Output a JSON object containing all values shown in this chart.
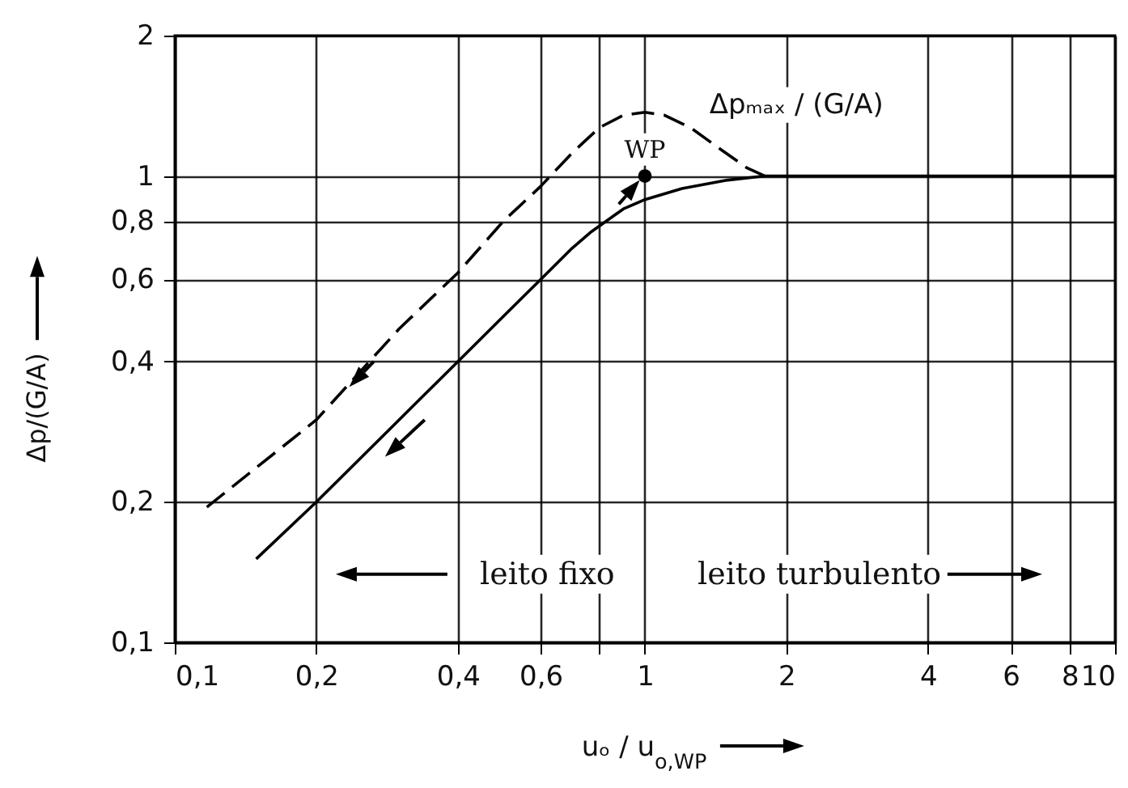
{
  "chart_data": {
    "type": "line",
    "xlabel": "uₒ / u$_{o,WP}$",
    "ylabel": "Δp/(G/A)",
    "log": "xy",
    "grid": true,
    "marker": "none",
    "xlim": [
      0.1,
      10
    ],
    "ylim": [
      0.1,
      2
    ],
    "xticks": [
      {
        "value": 0.1,
        "label": "0,1"
      },
      {
        "value": 0.2,
        "label": "0,2"
      },
      {
        "value": 0.4,
        "label": "0,4"
      },
      {
        "value": 0.6,
        "label": "0,6"
      },
      {
        "value": 0.8,
        "label": null
      },
      1,
      2,
      4,
      6,
      8,
      10
    ],
    "yticks": [
      {
        "value": 0.1,
        "label": "0,1"
      },
      {
        "value": 0.2,
        "label": "0,2"
      },
      {
        "value": 0.4,
        "label": "0,4"
      },
      {
        "value": 0.6,
        "label": "0,6"
      },
      {
        "value": 0.8,
        "label": "0,8"
      },
      1,
      2
    ],
    "series": [
      {
        "color": "#000000",
        "line_style": "dashed",
        "x": [
          0.117,
          0.2,
          0.3,
          0.4,
          0.5,
          0.6,
          0.7,
          0.8,
          0.9,
          1,
          1.1,
          1.25,
          1.45,
          1.65,
          1.8
        ],
        "values": [
          0.195,
          0.3,
          0.47,
          0.62,
          0.8,
          0.95,
          1.12,
          1.27,
          1.35,
          1.37,
          1.35,
          1.27,
          1.14,
          1.04,
          1.0
        ]
      },
      {
        "color": "#000000",
        "line_style": "solid",
        "x": [
          0.149,
          0.2,
          0.3,
          0.4,
          0.5,
          0.6,
          0.7,
          0.77,
          0.9,
          1,
          1.2,
          1.5,
          1.8,
          2,
          4,
          10
        ],
        "values": [
          0.151,
          0.2,
          0.3,
          0.4,
          0.5,
          0.6,
          0.7,
          0.76,
          0.85,
          0.89,
          0.94,
          0.98,
          1.0,
          1.0,
          1.0,
          1.0
        ]
      },
      {
        "type": "scatter",
        "color": "#000000",
        "marker": "circle",
        "x": [
          1
        ],
        "values": [
          1
        ]
      }
    ],
    "annotations": [
      "WP",
      "Δpₘₐₓ / (G/A)",
      "leito fixo",
      "leito turbulento"
    ]
  }
}
